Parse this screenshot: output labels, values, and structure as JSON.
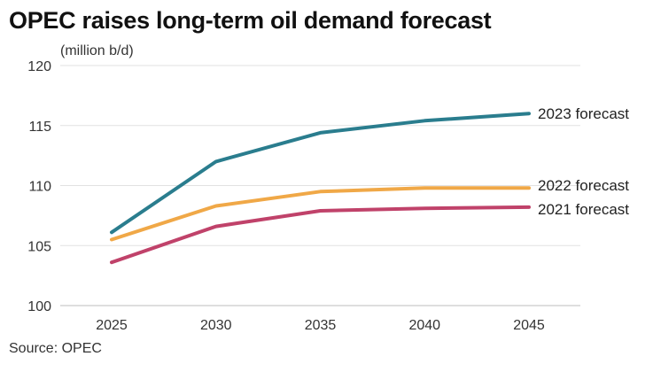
{
  "title": "OPEC raises long-term oil demand forecast",
  "source": "Source: OPEC",
  "chart_data": {
    "type": "line",
    "title": "OPEC raises long-term oil demand forecast",
    "ylabel": "(million b/d)",
    "xlabel": "",
    "x": [
      2025,
      2030,
      2035,
      2040,
      2045
    ],
    "ylim": [
      100,
      120
    ],
    "yticks": [
      100,
      105,
      110,
      115,
      120
    ],
    "grid": "horizontal",
    "series": [
      {
        "name": "2023 forecast",
        "color": "#2a7d8e",
        "values": [
          106.1,
          112.0,
          114.4,
          115.4,
          116.0
        ]
      },
      {
        "name": "2022 forecast",
        "color": "#f0a847",
        "values": [
          105.5,
          108.3,
          109.5,
          109.8,
          109.8
        ]
      },
      {
        "name": "2021 forecast",
        "color": "#c0426a",
        "values": [
          103.6,
          106.6,
          107.9,
          108.1,
          108.2
        ]
      }
    ],
    "legend": "inline-right"
  }
}
